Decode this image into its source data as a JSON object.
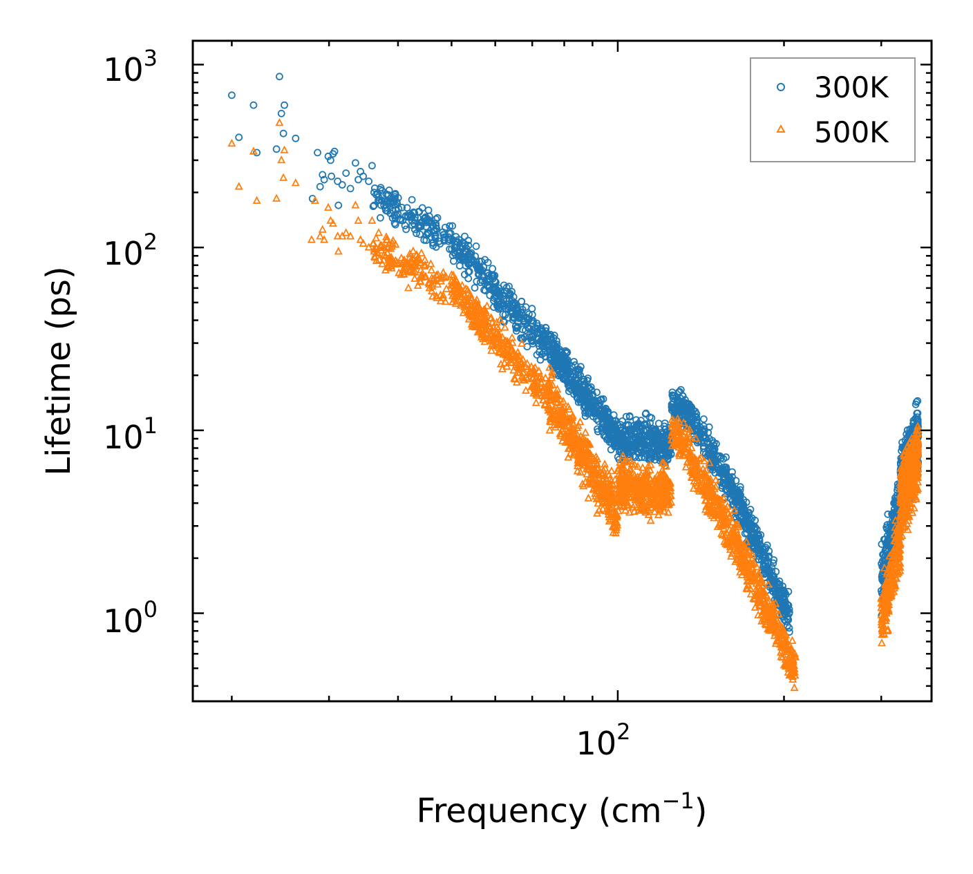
{
  "chart_data": {
    "type": "scatter",
    "title": "",
    "xlabel_main": "Frequency (cm",
    "xlabel_sup": "−1",
    "xlabel_end": ")",
    "ylabel": "Lifetime (ps)",
    "xscale": "log",
    "yscale": "log",
    "xlim": [
      17,
      370
    ],
    "ylim": [
      0.33,
      1350
    ],
    "x_ticks": [
      {
        "value": 100,
        "base": "10",
        "exp": "2"
      }
    ],
    "y_ticks": [
      {
        "value": 1,
        "base": "10",
        "exp": "0"
      },
      {
        "value": 10,
        "base": "10",
        "exp": "1"
      },
      {
        "value": 100,
        "base": "10",
        "exp": "2"
      },
      {
        "value": 1000,
        "base": "10",
        "exp": "3"
      }
    ],
    "legend_position": "top-right",
    "series": [
      {
        "name": "300K",
        "marker": "circle",
        "color": "#1f77b4",
        "points": [
          [
            20,
            680
          ],
          [
            20.6,
            400
          ],
          [
            21.9,
            600
          ],
          [
            22.2,
            330
          ],
          [
            24.1,
            345
          ],
          [
            24.4,
            860
          ],
          [
            24.6,
            540
          ],
          [
            24.8,
            420
          ],
          [
            24.9,
            600
          ],
          [
            26.1,
            395
          ],
          [
            28,
            185
          ],
          [
            28.6,
            330
          ],
          [
            28.9,
            215
          ],
          [
            29.2,
            250
          ],
          [
            29.4,
            235
          ],
          [
            29.9,
            315
          ],
          [
            30.2,
            300
          ],
          [
            30.3,
            245
          ],
          [
            30.5,
            325
          ],
          [
            30.7,
            335
          ],
          [
            31.1,
            230
          ],
          [
            31.2,
            170
          ],
          [
            31.7,
            220
          ],
          [
            32.2,
            255
          ],
          [
            32.8,
            210
          ],
          [
            33.5,
            290
          ],
          [
            33.9,
            235
          ],
          [
            34.2,
            260
          ],
          [
            34.6,
            245
          ],
          [
            35.4,
            230
          ],
          [
            35.9,
            280
          ],
          [
            36.2,
            200
          ]
        ],
        "clusters": [
          {
            "x": [
              36,
              50
            ],
            "y_start": 190,
            "y_end": 110,
            "n": 150,
            "spread": 0.25
          },
          {
            "x": [
              50,
              75
            ],
            "y_start": 110,
            "y_end": 28,
            "n": 300,
            "spread": 0.3
          },
          {
            "x": [
              75,
              100
            ],
            "y_start": 28,
            "y_end": 9,
            "n": 380,
            "spread": 0.3
          },
          {
            "x": [
              100,
              125
            ],
            "y_start": 9,
            "y_end": 8.5,
            "n": 320,
            "spread": 0.35
          },
          {
            "x": [
              125,
              135
            ],
            "y_start": 14,
            "y_end": 12,
            "n": 90,
            "spread": 0.3
          },
          {
            "x": [
              135,
              160
            ],
            "y_start": 12,
            "y_end": 5,
            "n": 180,
            "spread": 0.3
          },
          {
            "x": [
              160,
              205
            ],
            "y_start": 5,
            "y_end": 0.95,
            "n": 320,
            "spread": 0.3
          },
          {
            "x": [
              300,
              325
            ],
            "y_start": 1.4,
            "y_end": 4.0,
            "n": 220,
            "spread": 0.55
          },
          {
            "x": [
              325,
              350
            ],
            "y_start": 5,
            "y_end": 9,
            "n": 450,
            "spread": 0.55
          }
        ]
      },
      {
        "name": "500K",
        "marker": "triangle",
        "color": "#ff7f0e",
        "points": [
          [
            20,
            370
          ],
          [
            20.6,
            215
          ],
          [
            21.9,
            335
          ],
          [
            22.2,
            180
          ],
          [
            24.1,
            185
          ],
          [
            24.4,
            480
          ],
          [
            24.6,
            300
          ],
          [
            24.8,
            240
          ],
          [
            24.9,
            340
          ],
          [
            26.1,
            225
          ],
          [
            27.9,
            110
          ],
          [
            28.3,
            180
          ],
          [
            28.9,
            115
          ],
          [
            29.2,
            125
          ],
          [
            29.4,
            110
          ],
          [
            29.9,
            165
          ],
          [
            30.2,
            140
          ],
          [
            30.5,
            135
          ],
          [
            31.1,
            115
          ],
          [
            31.2,
            95
          ],
          [
            31.7,
            115
          ],
          [
            32.2,
            120
          ],
          [
            32.8,
            115
          ],
          [
            33.5,
            170
          ],
          [
            33.9,
            140
          ],
          [
            34.2,
            110
          ],
          [
            34.6,
            105
          ],
          [
            35.4,
            100
          ],
          [
            35.9,
            140
          ],
          [
            36.2,
            95
          ]
        ],
        "clusters": [
          {
            "x": [
              36,
              50
            ],
            "y_start": 100,
            "y_end": 60,
            "n": 150,
            "spread": 0.3
          },
          {
            "x": [
              50,
              75
            ],
            "y_start": 60,
            "y_end": 15,
            "n": 320,
            "spread": 0.3
          },
          {
            "x": [
              75,
              100
            ],
            "y_start": 15,
            "y_end": 3.5,
            "n": 420,
            "spread": 0.4
          },
          {
            "x": [
              100,
              125
            ],
            "y_start": 5,
            "y_end": 4.5,
            "n": 360,
            "spread": 0.4
          },
          {
            "x": [
              125,
              135
            ],
            "y_start": 10,
            "y_end": 8,
            "n": 90,
            "spread": 0.35
          },
          {
            "x": [
              135,
              160
            ],
            "y_start": 7,
            "y_end": 2.8,
            "n": 200,
            "spread": 0.35
          },
          {
            "x": [
              160,
              210
            ],
            "y_start": 2.8,
            "y_end": 0.5,
            "n": 360,
            "spread": 0.35
          },
          {
            "x": [
              300,
              325
            ],
            "y_start": 0.9,
            "y_end": 2.5,
            "n": 220,
            "spread": 0.5
          },
          {
            "x": [
              325,
              350
            ],
            "y_start": 4,
            "y_end": 7,
            "n": 450,
            "spread": 0.55
          }
        ]
      }
    ]
  }
}
